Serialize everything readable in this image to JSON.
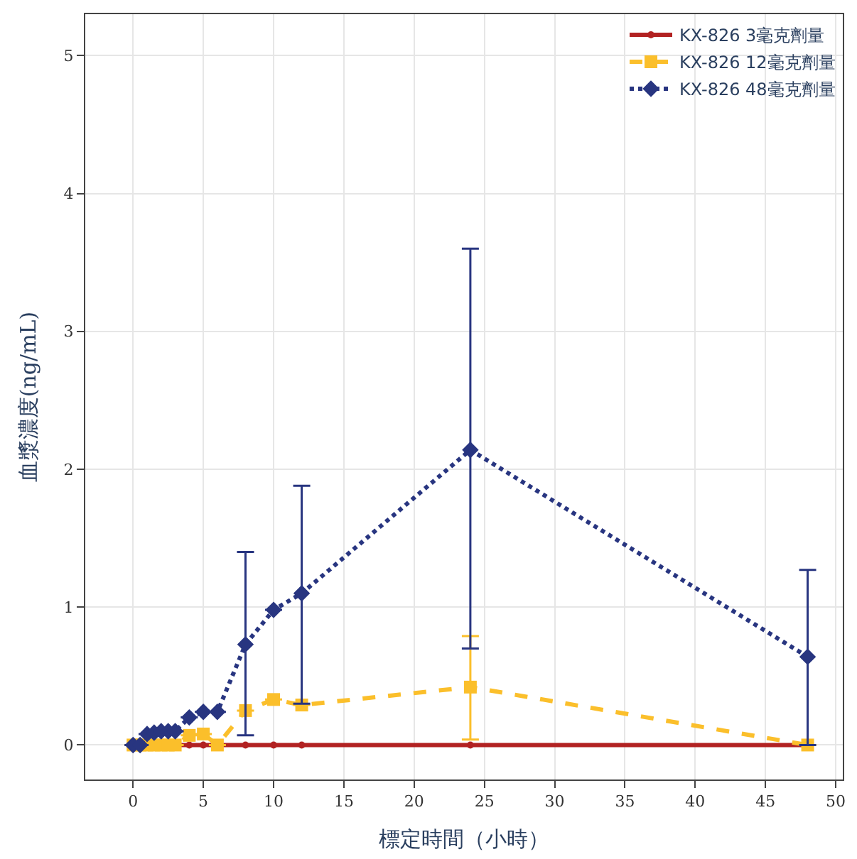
{
  "chart_data": {
    "type": "line",
    "xlabel": "標定時間（小時）",
    "ylabel": "血漿濃度(ng/mL)",
    "x": [
      0,
      0.5,
      1,
      1.5,
      2,
      2.5,
      3,
      4,
      5,
      6,
      8,
      10,
      12,
      24,
      48
    ],
    "series": [
      {
        "name": "KX-826 3毫克劑量",
        "color": "#b22222",
        "marker": "circle",
        "line_style": "solid",
        "values": [
          null,
          null,
          null,
          null,
          null,
          null,
          0,
          0,
          0,
          0,
          0,
          0,
          0,
          0,
          0
        ]
      },
      {
        "name": "KX-826 12毫克劑量",
        "color": "#fbbf2b",
        "marker": "square",
        "line_style": "dashed",
        "values": [
          0,
          0,
          0,
          0,
          0,
          0,
          0,
          0.07,
          0.08,
          0,
          0.25,
          0.33,
          0.29,
          0.42,
          0
        ],
        "errors": [
          null,
          null,
          null,
          null,
          null,
          null,
          null,
          null,
          null,
          null,
          null,
          null,
          null,
          [
            0.04,
            0.79
          ],
          null
        ]
      },
      {
        "name": "KX-826 48毫克劑量",
        "color": "#283580",
        "marker": "diamond",
        "line_style": "dotted",
        "values": [
          0,
          0,
          0.08,
          0.09,
          0.1,
          0.1,
          0.1,
          0.2,
          0.24,
          0.24,
          0.73,
          0.98,
          1.1,
          2.14,
          0.64
        ],
        "errors": [
          null,
          null,
          null,
          null,
          null,
          null,
          null,
          null,
          null,
          null,
          [
            0.07,
            1.4
          ],
          null,
          [
            0.3,
            1.88
          ],
          [
            0.7,
            3.6
          ],
          [
            0,
            1.27
          ]
        ]
      }
    ],
    "xlim": [
      -3.4,
      50.5
    ],
    "xticks": [
      0,
      5,
      10,
      15,
      20,
      25,
      30,
      35,
      40,
      45,
      50
    ],
    "ylim": [
      -0.25,
      5.3
    ],
    "yticks": [
      0,
      1,
      2,
      3,
      4,
      5
    ],
    "grid": true,
    "legend": "top right"
  }
}
